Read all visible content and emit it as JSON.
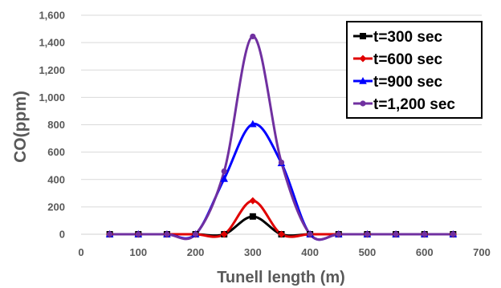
{
  "chart_data": {
    "type": "line",
    "title": "",
    "xlabel": "Tunell length (m)",
    "ylabel": "CO(ppm)",
    "xlim": [
      0,
      700
    ],
    "ylim": [
      0,
      1600
    ],
    "x_ticks": [
      "0",
      "100",
      "200",
      "300",
      "400",
      "500",
      "600",
      "700"
    ],
    "y_ticks": [
      "0",
      "200",
      "400",
      "600",
      "800",
      "1,000",
      "1,200",
      "1,400",
      "1,600"
    ],
    "grid": "horizontal",
    "smooth": true,
    "legend_position": "top-right",
    "x": [
      50,
      100,
      150,
      200,
      250,
      300,
      350,
      400,
      450,
      500,
      550,
      600,
      650
    ],
    "series": [
      {
        "name": "t=300 sec",
        "color": "#000000",
        "marker": "square",
        "values": [
          0,
          0,
          0,
          0,
          0,
          130,
          0,
          0,
          0,
          0,
          0,
          0,
          0
        ]
      },
      {
        "name": "t=600 sec",
        "color": "#e00000",
        "marker": "diamond",
        "values": [
          0,
          0,
          0,
          0,
          0,
          245,
          0,
          0,
          0,
          0,
          0,
          0,
          0
        ]
      },
      {
        "name": "t=900 sec",
        "color": "#0000ff",
        "marker": "triangle",
        "values": [
          0,
          0,
          0,
          0,
          405,
          805,
          520,
          0,
          0,
          0,
          0,
          0,
          0
        ]
      },
      {
        "name": "t=1,200 sec",
        "color": "#7030a0",
        "marker": "circle",
        "values": [
          0,
          0,
          0,
          0,
          460,
          1445,
          525,
          0,
          0,
          0,
          0,
          0,
          0
        ]
      }
    ]
  }
}
